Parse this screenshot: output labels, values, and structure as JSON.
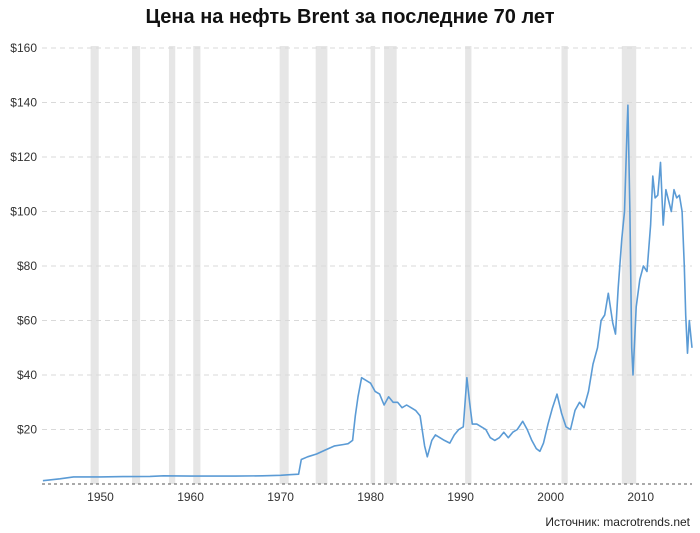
{
  "chart_data": {
    "type": "line",
    "title": "Цена на нефть Brent за последние 70 лет",
    "xlabel": "",
    "ylabel": "",
    "xlim": [
      1943.5,
      2015.7
    ],
    "ylim": [
      0,
      160
    ],
    "y_ticks": [
      {
        "value": 20,
        "label": "$20"
      },
      {
        "value": 40,
        "label": "$40"
      },
      {
        "value": 60,
        "label": "$60"
      },
      {
        "value": 80,
        "label": "$80"
      },
      {
        "value": 100,
        "label": "$100"
      },
      {
        "value": 120,
        "label": "$120"
      },
      {
        "value": 140,
        "label": "$140"
      },
      {
        "value": 160,
        "label": "$160"
      }
    ],
    "x_ticks": [
      {
        "value": 1950,
        "label": "1950"
      },
      {
        "value": 1960,
        "label": "1960"
      },
      {
        "value": 1970,
        "label": "1970"
      },
      {
        "value": 1980,
        "label": "1980"
      },
      {
        "value": 1990,
        "label": "1990"
      },
      {
        "value": 2000,
        "label": "2000"
      },
      {
        "value": 2010,
        "label": "2010"
      }
    ],
    "grid": "horizontal dashed",
    "recession_bands": [
      [
        1948.9,
        1949.8
      ],
      [
        1953.5,
        1954.4
      ],
      [
        1957.6,
        1958.3
      ],
      [
        1960.3,
        1961.1
      ],
      [
        1969.9,
        1970.9
      ],
      [
        1973.9,
        1975.2
      ],
      [
        1980.0,
        1980.5
      ],
      [
        1981.5,
        1982.9
      ],
      [
        1990.5,
        1991.2
      ],
      [
        2001.2,
        2001.9
      ],
      [
        2007.9,
        2009.5
      ]
    ],
    "series": [
      {
        "color": "#5b9bd5",
        "points": [
          [
            1943.6,
            1.2
          ],
          [
            1945.5,
            1.9
          ],
          [
            1947.0,
            2.6
          ],
          [
            1950.0,
            2.6
          ],
          [
            1952.5,
            2.7
          ],
          [
            1955.5,
            2.8
          ],
          [
            1957.0,
            3.0
          ],
          [
            1960.0,
            2.9
          ],
          [
            1965.0,
            2.9
          ],
          [
            1968.0,
            3.0
          ],
          [
            1970.0,
            3.2
          ],
          [
            1971.0,
            3.4
          ],
          [
            1972.0,
            3.6
          ],
          [
            1972.3,
            9.0
          ],
          [
            1973.0,
            10.0
          ],
          [
            1974.0,
            11.0
          ],
          [
            1975.0,
            12.5
          ],
          [
            1976.0,
            14.0
          ],
          [
            1977.0,
            14.5
          ],
          [
            1977.5,
            14.8
          ],
          [
            1978.0,
            16.0
          ],
          [
            1978.3,
            25.0
          ],
          [
            1978.6,
            32.0
          ],
          [
            1979.0,
            39.0
          ],
          [
            1979.5,
            38.0
          ],
          [
            1980.0,
            37.0
          ],
          [
            1980.5,
            34.0
          ],
          [
            1981.0,
            33.0
          ],
          [
            1981.5,
            29.0
          ],
          [
            1982.0,
            32.0
          ],
          [
            1982.5,
            30.0
          ],
          [
            1983.0,
            30.0
          ],
          [
            1983.5,
            28.0
          ],
          [
            1984.0,
            29.0
          ],
          [
            1984.5,
            28.0
          ],
          [
            1985.0,
            27.0
          ],
          [
            1985.5,
            25.0
          ],
          [
            1986.0,
            14.0
          ],
          [
            1986.3,
            10.0
          ],
          [
            1986.8,
            16.0
          ],
          [
            1987.2,
            18.0
          ],
          [
            1987.7,
            17.0
          ],
          [
            1988.2,
            16.0
          ],
          [
            1988.8,
            15.0
          ],
          [
            1989.3,
            18.0
          ],
          [
            1989.8,
            20.0
          ],
          [
            1990.3,
            21.0
          ],
          [
            1990.7,
            39.0
          ],
          [
            1991.0,
            30.0
          ],
          [
            1991.3,
            22.0
          ],
          [
            1991.8,
            22.0
          ],
          [
            1992.3,
            21.0
          ],
          [
            1992.8,
            20.0
          ],
          [
            1993.3,
            17.0
          ],
          [
            1993.8,
            16.0
          ],
          [
            1994.3,
            17.0
          ],
          [
            1994.8,
            19.0
          ],
          [
            1995.3,
            17.0
          ],
          [
            1995.8,
            19.0
          ],
          [
            1996.3,
            20.0
          ],
          [
            1996.9,
            23.0
          ],
          [
            1997.4,
            20.0
          ],
          [
            1997.9,
            16.0
          ],
          [
            1998.4,
            13.0
          ],
          [
            1998.8,
            12.0
          ],
          [
            1999.2,
            15.0
          ],
          [
            1999.7,
            22.0
          ],
          [
            2000.2,
            28.0
          ],
          [
            2000.7,
            33.0
          ],
          [
            2001.2,
            26.0
          ],
          [
            2001.7,
            21.0
          ],
          [
            2002.2,
            20.0
          ],
          [
            2002.7,
            27.0
          ],
          [
            2003.2,
            30.0
          ],
          [
            2003.7,
            28.0
          ],
          [
            2004.2,
            34.0
          ],
          [
            2004.7,
            44.0
          ],
          [
            2005.2,
            50.0
          ],
          [
            2005.6,
            60.0
          ],
          [
            2006.0,
            62.0
          ],
          [
            2006.4,
            70.0
          ],
          [
            2006.9,
            59.0
          ],
          [
            2007.2,
            55.0
          ],
          [
            2007.5,
            72.0
          ],
          [
            2007.9,
            90.0
          ],
          [
            2008.2,
            100.0
          ],
          [
            2008.5,
            132.0
          ],
          [
            2008.58,
            139.0
          ],
          [
            2008.8,
            100.0
          ],
          [
            2009.0,
            50.0
          ],
          [
            2009.15,
            40.0
          ],
          [
            2009.5,
            65.0
          ],
          [
            2009.9,
            75.0
          ],
          [
            2010.3,
            80.0
          ],
          [
            2010.7,
            78.0
          ],
          [
            2011.1,
            95.0
          ],
          [
            2011.35,
            113.0
          ],
          [
            2011.6,
            105.0
          ],
          [
            2011.9,
            106.0
          ],
          [
            2012.2,
            118.0
          ],
          [
            2012.5,
            95.0
          ],
          [
            2012.8,
            108.0
          ],
          [
            2013.1,
            104.0
          ],
          [
            2013.4,
            100.0
          ],
          [
            2013.7,
            108.0
          ],
          [
            2014.0,
            105.0
          ],
          [
            2014.3,
            106.0
          ],
          [
            2014.6,
            100.0
          ],
          [
            2014.85,
            80.0
          ],
          [
            2015.0,
            62.0
          ],
          [
            2015.2,
            48.0
          ],
          [
            2015.4,
            60.0
          ],
          [
            2015.7,
            50.0
          ]
        ]
      }
    ]
  },
  "source": "Источник: macrotrends.net",
  "colors": {
    "line": "#5b9bd5",
    "recession_band": "#e6e6e6",
    "grid": "#d9d9d9",
    "axis": "#555555"
  }
}
